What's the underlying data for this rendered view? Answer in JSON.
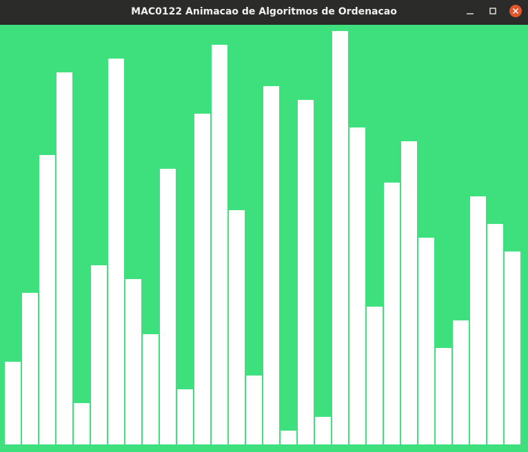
{
  "window": {
    "title": "MAC0122 Animacao de Algoritmos de Ordenacao"
  },
  "chart_data": {
    "type": "bar",
    "values": [
      6,
      11,
      21,
      27,
      3,
      13,
      28,
      12,
      8,
      20,
      4,
      24,
      29,
      17,
      5,
      26,
      1,
      25,
      2,
      30,
      23,
      10,
      19,
      22,
      15,
      7,
      9,
      18,
      16,
      14
    ],
    "color": "#ffffff",
    "background": "#3ee07e"
  }
}
